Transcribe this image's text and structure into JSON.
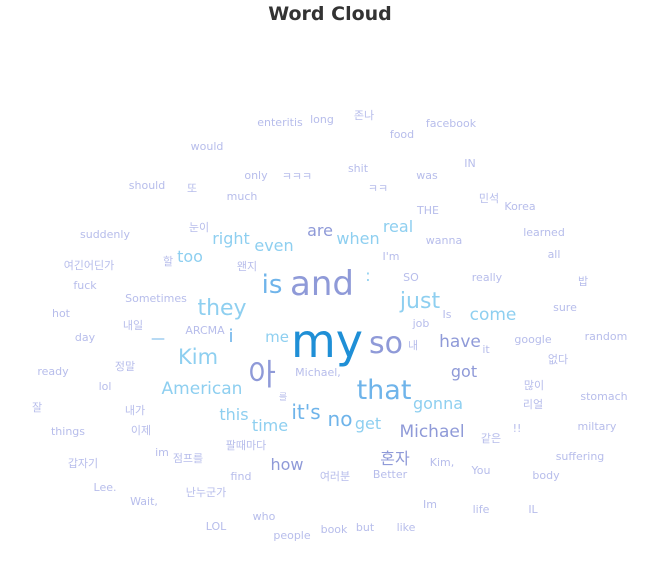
{
  "chart_data": {
    "type": "wordcloud",
    "title": "Word Cloud",
    "palette": [
      "#1f8fd6",
      "#6fb4ea",
      "#8ecff0",
      "#8f9ad8",
      "#9ea6e2",
      "#b7bdeb"
    ],
    "words": [
      {
        "text": "my",
        "size": 46,
        "color": 0
      },
      {
        "text": "and",
        "size": 34,
        "color": 3
      },
      {
        "text": "so",
        "size": 30,
        "color": 3
      },
      {
        "text": "아",
        "size": 30,
        "color": 3
      },
      {
        "text": "that",
        "size": 27,
        "color": 1
      },
      {
        "text": "is",
        "size": 26,
        "color": 1
      },
      {
        "text": "they",
        "size": 22,
        "color": 2
      },
      {
        "text": "just",
        "size": 22,
        "color": 2
      },
      {
        "text": "Kim",
        "size": 21,
        "color": 2
      },
      {
        "text": "it's",
        "size": 20,
        "color": 1
      },
      {
        "text": "no",
        "size": 20,
        "color": 1
      },
      {
        "text": "American",
        "size": 17,
        "color": 2
      },
      {
        "text": "come",
        "size": 17,
        "color": 2
      },
      {
        "text": "have",
        "size": 17,
        "color": 3
      },
      {
        "text": "Michael",
        "size": 17,
        "color": 3
      },
      {
        "text": "gonna",
        "size": 16,
        "color": 2
      },
      {
        "text": "right",
        "size": 16,
        "color": 2
      },
      {
        "text": "even",
        "size": 16,
        "color": 2
      },
      {
        "text": "when",
        "size": 16,
        "color": 2
      },
      {
        "text": "are",
        "size": 16,
        "color": 3
      },
      {
        "text": "real",
        "size": 16,
        "color": 2
      },
      {
        "text": "got",
        "size": 16,
        "color": 3
      },
      {
        "text": "this",
        "size": 16,
        "color": 2
      },
      {
        "text": "time",
        "size": 16,
        "color": 2
      },
      {
        "text": "how",
        "size": 16,
        "color": 3
      },
      {
        "text": "get",
        "size": 16,
        "color": 2
      },
      {
        "text": "too",
        "size": 16,
        "color": 2
      },
      {
        "text": "혼자",
        "size": 16,
        "color": 3
      },
      {
        "text": "me",
        "size": 15,
        "color": 2
      },
      {
        "text": "i",
        "size": 18,
        "color": 1
      },
      {
        "text": ":",
        "size": 16,
        "color": 2
      },
      {
        "text": "—",
        "size": 14,
        "color": 1
      },
      {
        "text": "enteritis",
        "size": 11,
        "color": 5
      },
      {
        "text": "long",
        "size": 11,
        "color": 5
      },
      {
        "text": "존나",
        "size": 11,
        "color": 5
      },
      {
        "text": "food",
        "size": 11,
        "color": 5
      },
      {
        "text": "facebook",
        "size": 11,
        "color": 5
      },
      {
        "text": "would",
        "size": 11,
        "color": 5
      },
      {
        "text": "shit",
        "size": 11,
        "color": 5
      },
      {
        "text": "IN",
        "size": 11,
        "color": 5
      },
      {
        "text": "only",
        "size": 11,
        "color": 5
      },
      {
        "text": "ㅋㅋㅋ",
        "size": 11,
        "color": 5
      },
      {
        "text": "was",
        "size": 11,
        "color": 5
      },
      {
        "text": "should",
        "size": 11,
        "color": 5
      },
      {
        "text": "또",
        "size": 11,
        "color": 5
      },
      {
        "text": "much",
        "size": 11,
        "color": 5
      },
      {
        "text": "ㅋㅋ",
        "size": 11,
        "color": 5
      },
      {
        "text": "민석",
        "size": 11,
        "color": 5
      },
      {
        "text": "THE",
        "size": 11,
        "color": 5
      },
      {
        "text": "Korea",
        "size": 11,
        "color": 5
      },
      {
        "text": "suddenly",
        "size": 11,
        "color": 5
      },
      {
        "text": "눈이",
        "size": 11,
        "color": 5
      },
      {
        "text": "wanna",
        "size": 11,
        "color": 5
      },
      {
        "text": "learned",
        "size": 11,
        "color": 5
      },
      {
        "text": "I'm",
        "size": 11,
        "color": 5
      },
      {
        "text": "all",
        "size": 11,
        "color": 5
      },
      {
        "text": "여긴어딘가",
        "size": 11,
        "color": 5
      },
      {
        "text": "할",
        "size": 11,
        "color": 5
      },
      {
        "text": "왠지",
        "size": 11,
        "color": 5
      },
      {
        "text": "SO",
        "size": 11,
        "color": 5
      },
      {
        "text": "really",
        "size": 11,
        "color": 5
      },
      {
        "text": "fuck",
        "size": 11,
        "color": 5
      },
      {
        "text": "밥",
        "size": 11,
        "color": 5
      },
      {
        "text": "Sometimes",
        "size": 11,
        "color": 5
      },
      {
        "text": "hot",
        "size": 11,
        "color": 5
      },
      {
        "text": "Is",
        "size": 11,
        "color": 5
      },
      {
        "text": "sure",
        "size": 11,
        "color": 5
      },
      {
        "text": "내일",
        "size": 11,
        "color": 5
      },
      {
        "text": "ARCMA",
        "size": 11,
        "color": 5
      },
      {
        "text": "job",
        "size": 11,
        "color": 5
      },
      {
        "text": "day",
        "size": 11,
        "color": 5
      },
      {
        "text": "내",
        "size": 11,
        "color": 5
      },
      {
        "text": "it",
        "size": 11,
        "color": 5
      },
      {
        "text": "google",
        "size": 11,
        "color": 5
      },
      {
        "text": "random",
        "size": 11,
        "color": 5
      },
      {
        "text": "없다",
        "size": 11,
        "color": 5
      },
      {
        "text": "정말",
        "size": 11,
        "color": 5
      },
      {
        "text": "ready",
        "size": 11,
        "color": 5
      },
      {
        "text": "Michael,",
        "size": 11,
        "color": 5
      },
      {
        "text": "lol",
        "size": 11,
        "color": 5
      },
      {
        "text": "많이",
        "size": 11,
        "color": 5
      },
      {
        "text": "stomach",
        "size": 11,
        "color": 5
      },
      {
        "text": "잘",
        "size": 11,
        "color": 5
      },
      {
        "text": "내가",
        "size": 11,
        "color": 5
      },
      {
        "text": "리얼",
        "size": 11,
        "color": 5
      },
      {
        "text": "things",
        "size": 11,
        "color": 5
      },
      {
        "text": "이제",
        "size": 11,
        "color": 5
      },
      {
        "text": "팔때마다",
        "size": 11,
        "color": 5
      },
      {
        "text": "!!",
        "size": 11,
        "color": 5
      },
      {
        "text": "같은",
        "size": 11,
        "color": 5
      },
      {
        "text": "miltary",
        "size": 11,
        "color": 5
      },
      {
        "text": "im",
        "size": 11,
        "color": 5
      },
      {
        "text": "점프를",
        "size": 11,
        "color": 5
      },
      {
        "text": "갑자기",
        "size": 11,
        "color": 5
      },
      {
        "text": "Kim,",
        "size": 11,
        "color": 5
      },
      {
        "text": "suffering",
        "size": 11,
        "color": 5
      },
      {
        "text": "You",
        "size": 11,
        "color": 5
      },
      {
        "text": "find",
        "size": 11,
        "color": 5
      },
      {
        "text": "여러분",
        "size": 11,
        "color": 5
      },
      {
        "text": "Better",
        "size": 11,
        "color": 5
      },
      {
        "text": "body",
        "size": 11,
        "color": 5
      },
      {
        "text": "Lee.",
        "size": 11,
        "color": 5
      },
      {
        "text": "난누군가",
        "size": 11,
        "color": 5
      },
      {
        "text": "Wait,",
        "size": 11,
        "color": 5
      },
      {
        "text": "Im",
        "size": 11,
        "color": 5
      },
      {
        "text": "life",
        "size": 11,
        "color": 5
      },
      {
        "text": "IL",
        "size": 11,
        "color": 5
      },
      {
        "text": "who",
        "size": 11,
        "color": 5
      },
      {
        "text": "LOL",
        "size": 11,
        "color": 5
      },
      {
        "text": "book",
        "size": 11,
        "color": 5
      },
      {
        "text": "but",
        "size": 11,
        "color": 5
      },
      {
        "text": "like",
        "size": 11,
        "color": 5
      },
      {
        "text": "people",
        "size": 11,
        "color": 5
      },
      {
        "text": "를",
        "size": 9,
        "color": 5
      }
    ]
  }
}
